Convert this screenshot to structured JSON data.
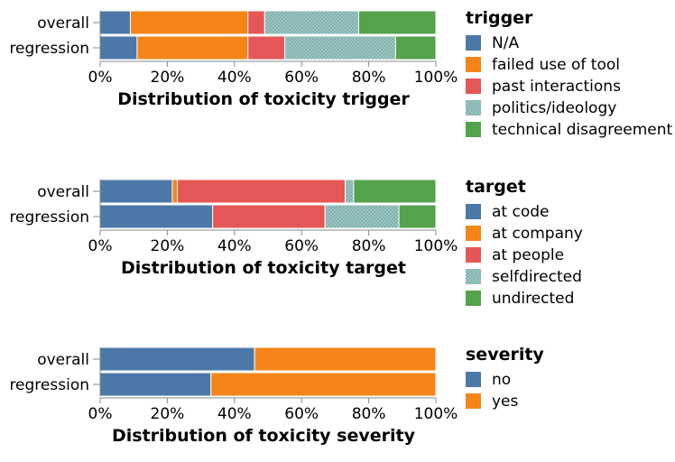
{
  "chart_data": [
    {
      "type": "bar",
      "stacked": "normalize",
      "orientation": "horizontal",
      "title": "Distribution of toxicity trigger",
      "categories": [
        "overall",
        "regression"
      ],
      "x_ticks": [
        "0%",
        "20%",
        "40%",
        "60%",
        "80%",
        "100%"
      ],
      "xlim": [
        0,
        100
      ],
      "legend_title": "trigger",
      "legend_position": "right",
      "series": [
        {
          "name": "N/A",
          "color": "#4c78a8",
          "values": [
            9,
            11
          ]
        },
        {
          "name": "failed use of tool",
          "color": "#f58518",
          "values": [
            35,
            33
          ]
        },
        {
          "name": "past interactions",
          "color": "#e45756",
          "values": [
            5,
            11
          ]
        },
        {
          "name": "politics/ideology",
          "color": "#72b7b2",
          "pattern": "dots",
          "values": [
            28,
            33
          ]
        },
        {
          "name": "technical disagreement",
          "color": "#54a24b",
          "values": [
            23,
            12
          ]
        }
      ]
    },
    {
      "type": "bar",
      "stacked": "normalize",
      "orientation": "horizontal",
      "title": "Distribution of toxicity target",
      "categories": [
        "overall",
        "regression"
      ],
      "x_ticks": [
        "0%",
        "20%",
        "40%",
        "60%",
        "80%",
        "100%"
      ],
      "xlim": [
        0,
        100
      ],
      "legend_title": "target",
      "legend_position": "right",
      "series": [
        {
          "name": "at code",
          "color": "#4c78a8",
          "values": [
            21.5,
            33.5
          ]
        },
        {
          "name": "at company",
          "color": "#f58518",
          "values": [
            1.5,
            0
          ]
        },
        {
          "name": "at people",
          "color": "#e45756",
          "values": [
            50,
            33.5
          ]
        },
        {
          "name": "selfdirected",
          "color": "#72b7b2",
          "pattern": "dots",
          "values": [
            2.5,
            22
          ]
        },
        {
          "name": "undirected",
          "color": "#54a24b",
          "values": [
            24.5,
            11
          ]
        }
      ]
    },
    {
      "type": "bar",
      "stacked": "normalize",
      "orientation": "horizontal",
      "title": "Distribution of toxicity severity",
      "categories": [
        "overall",
        "regression"
      ],
      "x_ticks": [
        "0%",
        "20%",
        "40%",
        "60%",
        "80%",
        "100%"
      ],
      "xlim": [
        0,
        100
      ],
      "legend_title": "severity",
      "legend_position": "right",
      "series": [
        {
          "name": "no",
          "color": "#4c78a8",
          "values": [
            46,
            33
          ]
        },
        {
          "name": "yes",
          "color": "#f58518",
          "values": [
            54,
            67
          ]
        }
      ]
    }
  ]
}
